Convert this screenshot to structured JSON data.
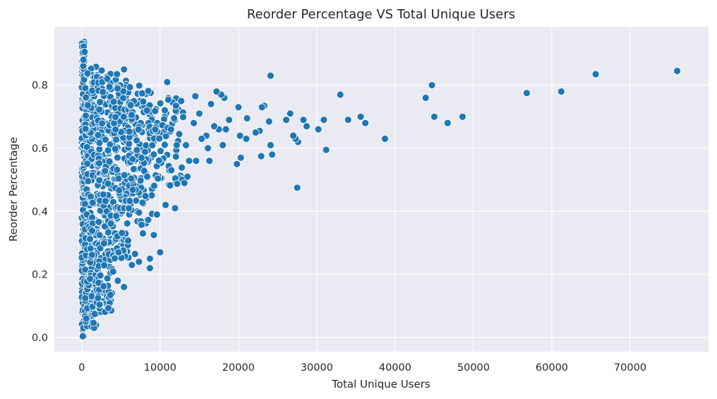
{
  "chart_data": {
    "type": "scatter",
    "title": "Reorder Percentage VS Total Unique Users",
    "xlabel": "Total Unique Users",
    "ylabel": "Reorder Percentage",
    "xlim": [
      -3500,
      80000
    ],
    "ylim": [
      -0.045,
      0.985
    ],
    "xticks": [
      0,
      10000,
      20000,
      30000,
      40000,
      50000,
      60000,
      70000
    ],
    "yticks": [
      0.0,
      0.2,
      0.4,
      0.6,
      0.8
    ],
    "ytick_labels": [
      "0.0",
      "0.2",
      "0.4",
      "0.6",
      "0.8"
    ],
    "grid": true,
    "legend": "none",
    "marker_color": "#1f77b4",
    "background_color": "#eaeaf2",
    "outliers": [
      {
        "x": 24100,
        "y": 0.83
      },
      {
        "x": 33000,
        "y": 0.77
      },
      {
        "x": 43900,
        "y": 0.76
      },
      {
        "x": 44700,
        "y": 0.8
      },
      {
        "x": 45000,
        "y": 0.7
      },
      {
        "x": 46700,
        "y": 0.68
      },
      {
        "x": 48600,
        "y": 0.7
      },
      {
        "x": 56800,
        "y": 0.775
      },
      {
        "x": 61200,
        "y": 0.78
      },
      {
        "x": 65600,
        "y": 0.835
      },
      {
        "x": 76000,
        "y": 0.845
      },
      {
        "x": 38700,
        "y": 0.63
      },
      {
        "x": 36200,
        "y": 0.68
      },
      {
        "x": 35600,
        "y": 0.7
      },
      {
        "x": 34000,
        "y": 0.69
      },
      {
        "x": 31200,
        "y": 0.595
      },
      {
        "x": 30900,
        "y": 0.69
      },
      {
        "x": 30200,
        "y": 0.66
      },
      {
        "x": 28700,
        "y": 0.67
      },
      {
        "x": 28300,
        "y": 0.69
      },
      {
        "x": 27600,
        "y": 0.62
      },
      {
        "x": 27500,
        "y": 0.475
      },
      {
        "x": 27300,
        "y": 0.63
      },
      {
        "x": 27000,
        "y": 0.64
      },
      {
        "x": 26600,
        "y": 0.71
      },
      {
        "x": 26100,
        "y": 0.69
      },
      {
        "x": 24300,
        "y": 0.58
      },
      {
        "x": 24100,
        "y": 0.61
      },
      {
        "x": 23900,
        "y": 0.685
      },
      {
        "x": 23300,
        "y": 0.735
      },
      {
        "x": 23000,
        "y": 0.73
      },
      {
        "x": 22900,
        "y": 0.575
      },
      {
        "x": 22700,
        "y": 0.655
      },
      {
        "x": 22200,
        "y": 0.65
      },
      {
        "x": 21100,
        "y": 0.695
      },
      {
        "x": 21000,
        "y": 0.63
      },
      {
        "x": 20300,
        "y": 0.57
      },
      {
        "x": 20200,
        "y": 0.64
      },
      {
        "x": 20000,
        "y": 0.73
      },
      {
        "x": 19800,
        "y": 0.55
      },
      {
        "x": 18800,
        "y": 0.69
      },
      {
        "x": 18400,
        "y": 0.66
      },
      {
        "x": 18200,
        "y": 0.76
      },
      {
        "x": 18000,
        "y": 0.61
      },
      {
        "x": 17800,
        "y": 0.77
      },
      {
        "x": 17500,
        "y": 0.66
      },
      {
        "x": 17200,
        "y": 0.78
      },
      {
        "x": 16900,
        "y": 0.67
      },
      {
        "x": 16500,
        "y": 0.74
      },
      {
        "x": 16300,
        "y": 0.56
      },
      {
        "x": 16100,
        "y": 0.6
      },
      {
        "x": 15900,
        "y": 0.64
      },
      {
        "x": 15300,
        "y": 0.63
      },
      {
        "x": 15000,
        "y": 0.71
      },
      {
        "x": 14600,
        "y": 0.56
      },
      {
        "x": 14500,
        "y": 0.765
      },
      {
        "x": 14300,
        "y": 0.68
      },
      {
        "x": 13700,
        "y": 0.56
      },
      {
        "x": 13500,
        "y": 0.51
      },
      {
        "x": 13300,
        "y": 0.61
      },
      {
        "x": 13100,
        "y": 0.49
      },
      {
        "x": 12700,
        "y": 0.75
      },
      {
        "x": 11900,
        "y": 0.41
      },
      {
        "x": 10900,
        "y": 0.81
      },
      {
        "x": 10700,
        "y": 0.42
      },
      {
        "x": 9600,
        "y": 0.39
      },
      {
        "x": 10000,
        "y": 0.27
      },
      {
        "x": 9200,
        "y": 0.325
      },
      {
        "x": 8700,
        "y": 0.22
      },
      {
        "x": 8700,
        "y": 0.25
      },
      {
        "x": 7800,
        "y": 0.33
      },
      {
        "x": 7300,
        "y": 0.24
      },
      {
        "x": 6800,
        "y": 0.265
      },
      {
        "x": 6400,
        "y": 0.23
      },
      {
        "x": 5400,
        "y": 0.16
      },
      {
        "x": 4600,
        "y": 0.18
      },
      {
        "x": 4500,
        "y": 0.835
      },
      {
        "x": 5400,
        "y": 0.85
      }
    ],
    "cluster": {
      "description_free": true,
      "segments": [
        {
          "x": [
            0,
            400
          ],
          "y": [
            0.0,
            0.94
          ],
          "n": 220
        },
        {
          "x": [
            400,
            2000
          ],
          "y": [
            0.03,
            0.86
          ],
          "n": 260
        },
        {
          "x": [
            2000,
            4000
          ],
          "y": [
            0.08,
            0.85
          ],
          "n": 220
        },
        {
          "x": [
            4000,
            6000
          ],
          "y": [
            0.25,
            0.82
          ],
          "n": 160
        },
        {
          "x": [
            6000,
            9000
          ],
          "y": [
            0.35,
            0.8
          ],
          "n": 130
        },
        {
          "x": [
            9000,
            13000
          ],
          "y": [
            0.48,
            0.76
          ],
          "n": 80
        }
      ]
    }
  }
}
